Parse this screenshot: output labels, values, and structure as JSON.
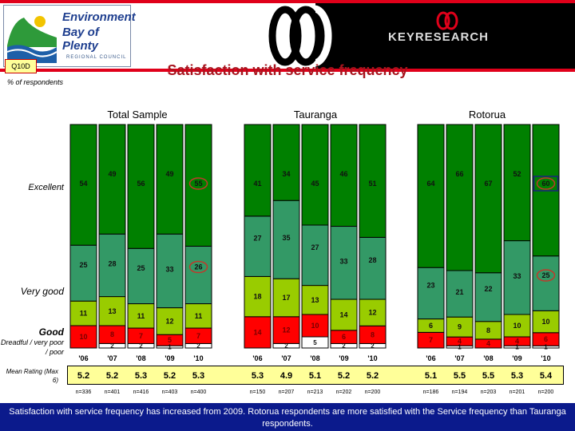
{
  "header": {
    "left_logo_text": [
      "Environment",
      "Bay of Plenty",
      "REGIONAL COUNCIL"
    ],
    "right_logo_text": "KEYRESEARCH"
  },
  "question_code": "Q10D",
  "title": "Satisfaction with service frequency",
  "subtitle": "% of respondents",
  "row_labels": {
    "excellent": "Excellent",
    "very_good": "Very good",
    "good": "Good",
    "poor": "Dreadful / very poor / poor",
    "mean": "Mean Rating (Max 6)"
  },
  "colors": {
    "excellent": "#008000",
    "very_good": "#339966",
    "good": "#99cc00",
    "poor": "#ff0000",
    "dont_know": "#ffffff",
    "mean_box": "#ffff99",
    "highlight": "#c0392b",
    "highlight_box": "#1a237e"
  },
  "chart_data": [
    {
      "type": "bar",
      "stacked": true,
      "title": "Total Sample",
      "categories": [
        "'06",
        "'07",
        "'08",
        "'09",
        "'10"
      ],
      "series": [
        {
          "name": "Excellent",
          "values": [
            54,
            49,
            56,
            49,
            55
          ]
        },
        {
          "name": "Very good",
          "values": [
            25,
            28,
            25,
            33,
            26
          ]
        },
        {
          "name": "Good",
          "values": [
            11,
            13,
            11,
            12,
            11
          ]
        },
        {
          "name": "Dreadful / very poor / poor",
          "values": [
            10,
            8,
            7,
            5,
            7
          ]
        },
        {
          "values": [
            null,
            2,
            2,
            1,
            2
          ]
        }
      ],
      "mean": [
        "5.2",
        "5.2",
        "5.3",
        "5.2",
        "5.3"
      ],
      "n": [
        "n=336",
        "n=401",
        "n=416",
        "n=403",
        "n=400"
      ],
      "highlight": {
        "circled": [
          [
            4,
            0
          ],
          [
            4,
            1
          ]
        ],
        "boxed": []
      }
    },
    {
      "type": "bar",
      "stacked": true,
      "title": "Tauranga",
      "categories": [
        "'06",
        "'07",
        "'08",
        "'09",
        "'10"
      ],
      "series": [
        {
          "name": "Excellent",
          "values": [
            41,
            34,
            45,
            46,
            51
          ]
        },
        {
          "name": "Very good",
          "values": [
            27,
            35,
            27,
            33,
            28
          ]
        },
        {
          "name": "Good",
          "values": [
            18,
            17,
            13,
            14,
            12
          ]
        },
        {
          "name": "Dreadful / very poor / poor",
          "values": [
            14,
            12,
            10,
            6,
            8
          ]
        },
        {
          "values": [
            null,
            2,
            5,
            2,
            2
          ]
        }
      ],
      "mean": [
        "5.3",
        "4.9",
        "5.1",
        "5.2",
        "5.2"
      ],
      "n": [
        "n=150",
        "n=207",
        "n=213",
        "n=202",
        "n=200"
      ],
      "highlight": {
        "circled": [],
        "boxed": []
      }
    },
    {
      "type": "bar",
      "stacked": true,
      "title": "Rotorua",
      "categories": [
        "'06",
        "'07",
        "'08",
        "'09",
        "'10"
      ],
      "series": [
        {
          "name": "Excellent",
          "values": [
            64,
            66,
            67,
            52,
            60
          ]
        },
        {
          "name": "Very good",
          "values": [
            23,
            21,
            22,
            33,
            25
          ]
        },
        {
          "name": "Good",
          "values": [
            6,
            9,
            8,
            10,
            10
          ]
        },
        {
          "name": "Dreadful / very poor / poor",
          "values": [
            7,
            4,
            4,
            4,
            6
          ]
        },
        {
          "values": [
            null,
            1,
            null,
            1,
            1
          ]
        }
      ],
      "mean": [
        "5.1",
        "5.5",
        "5.5",
        "5.3",
        "5.4"
      ],
      "n": [
        "n=186",
        "n=194",
        "n=203",
        "n=201",
        "n=200"
      ],
      "highlight": {
        "circled": [
          [
            4,
            0
          ],
          [
            4,
            1
          ]
        ],
        "boxed": [
          [
            4,
            0
          ]
        ]
      }
    }
  ],
  "footer": "Satisfaction with service frequency has increased from 2009. Rotorua respondents are more satisfied with the Service frequency than Tauranga respondents."
}
